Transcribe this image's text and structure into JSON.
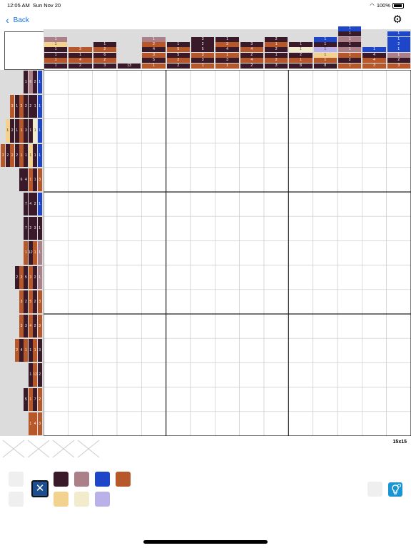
{
  "status": {
    "time": "12:05 AM",
    "date": "Sun Nov 20",
    "battery": "100%"
  },
  "nav": {
    "back_label": "Back"
  },
  "puzzle": {
    "size_label": "15x15",
    "colors": {
      "e": "#efe8ea",
      "w": "#f2eccc",
      "s": "#f3d18f",
      "p": "#ab8089",
      "d": "#3a1a28",
      "o": "#b7582a",
      "b": "#1e46c8",
      "l": "#bab1e9"
    },
    "columns": [
      [
        [
          "p",
          "1"
        ],
        [
          "s",
          "1"
        ],
        [
          "d",
          "1"
        ],
        [
          "d",
          "1"
        ],
        [
          "o",
          "1"
        ],
        [
          "d",
          "1"
        ]
      ],
      [
        [
          "o",
          "3"
        ],
        [
          "d",
          "1"
        ],
        [
          "o",
          "4"
        ],
        [
          "d",
          "2"
        ]
      ],
      [
        [
          "d",
          "1"
        ],
        [
          "o",
          "2"
        ],
        [
          "d",
          "6"
        ],
        [
          "o",
          "2"
        ],
        [
          "d",
          "3"
        ]
      ],
      [
        [
          "d",
          "13"
        ]
      ],
      [
        [
          "p",
          "1"
        ],
        [
          "o",
          "2"
        ],
        [
          "d",
          "4"
        ],
        [
          "o",
          "3"
        ],
        [
          "d",
          "5"
        ],
        [
          "o",
          "1"
        ]
      ],
      [
        [
          "d",
          "1"
        ],
        [
          "o",
          "5"
        ],
        [
          "d",
          "5"
        ],
        [
          "o",
          "2"
        ],
        [
          "d",
          "2"
        ]
      ],
      [
        [
          "d",
          "3"
        ],
        [
          "d",
          "2"
        ],
        [
          "d",
          "5"
        ],
        [
          "o",
          "3"
        ],
        [
          "d",
          "3"
        ],
        [
          "o",
          "1"
        ]
      ],
      [
        [
          "d",
          "1"
        ],
        [
          "o",
          "3"
        ],
        [
          "d",
          "4"
        ],
        [
          "o",
          "1"
        ],
        [
          "d",
          "3"
        ],
        [
          "o",
          "1"
        ]
      ],
      [
        [
          "d",
          "3"
        ],
        [
          "o",
          "4"
        ],
        [
          "d",
          "2"
        ],
        [
          "o",
          "4"
        ],
        [
          "d",
          "2"
        ]
      ],
      [
        [
          "d",
          "2"
        ],
        [
          "o",
          "1"
        ],
        [
          "d",
          "2"
        ],
        [
          "d",
          "1"
        ],
        [
          "o",
          "2"
        ],
        [
          "d",
          "3"
        ]
      ],
      [
        [
          "d",
          "1"
        ],
        [
          "w",
          "1"
        ],
        [
          "d",
          "2"
        ],
        [
          "o",
          "1"
        ],
        [
          "d",
          "8"
        ]
      ],
      [
        [
          "b",
          "1"
        ],
        [
          "d",
          "1"
        ],
        [
          "l",
          "1"
        ],
        [
          "s",
          "1"
        ],
        [
          "o",
          "1"
        ],
        [
          "d",
          "8"
        ]
      ],
      [
        [
          "b",
          "1"
        ],
        [
          "d",
          "1"
        ],
        [
          "p",
          "1"
        ],
        [
          "d",
          "1"
        ],
        [
          "p",
          "1"
        ],
        [
          "o",
          "1"
        ],
        [
          "d",
          "2"
        ],
        [
          "o",
          "1"
        ]
      ],
      [
        [
          "b",
          "1"
        ],
        [
          "d",
          "4"
        ],
        [
          "o",
          "4"
        ],
        [
          "o",
          "3"
        ]
      ],
      [
        [
          "b",
          "1"
        ],
        [
          "b",
          "1"
        ],
        [
          "b",
          "2"
        ],
        [
          "b",
          "1"
        ],
        [
          "p",
          "1"
        ],
        [
          "d",
          "2"
        ],
        [
          "o",
          "3"
        ]
      ]
    ],
    "rows": [
      [
        [
          "d",
          "1"
        ],
        [
          "p",
          "6"
        ],
        [
          "d",
          "2"
        ],
        [
          "b",
          "1"
        ]
      ],
      [
        [
          "o",
          "3"
        ],
        [
          "d",
          "1"
        ],
        [
          "o",
          "2"
        ],
        [
          "d",
          "2"
        ],
        [
          "d",
          "2"
        ],
        [
          "d",
          "1"
        ],
        [
          "b",
          "1"
        ]
      ],
      [
        [
          "s",
          "1"
        ],
        [
          "d",
          "2"
        ],
        [
          "d",
          "1"
        ],
        [
          "o",
          "1"
        ],
        [
          "d",
          "3"
        ],
        [
          "d",
          "1"
        ],
        [
          "w",
          "1"
        ],
        [
          "b",
          "1"
        ]
      ],
      [
        [
          "o",
          "2"
        ],
        [
          "d",
          "2"
        ],
        [
          "o",
          "2"
        ],
        [
          "d",
          "2"
        ],
        [
          "o",
          "1"
        ],
        [
          "d",
          "1"
        ],
        [
          "s",
          "1"
        ],
        [
          "d",
          "1"
        ],
        [
          "b",
          "1"
        ]
      ],
      [
        [
          "d",
          "6"
        ],
        [
          "d",
          "4"
        ],
        [
          "o",
          "1"
        ],
        [
          "d",
          "1"
        ],
        [
          "o",
          "3"
        ]
      ],
      [
        [
          "d",
          "7"
        ],
        [
          "d",
          "4"
        ],
        [
          "d",
          "2"
        ],
        [
          "b",
          "1"
        ]
      ],
      [
        [
          "d",
          "7"
        ],
        [
          "d",
          "2"
        ],
        [
          "d",
          "3"
        ],
        [
          "d",
          "1"
        ]
      ],
      [
        [
          "o",
          "1"
        ],
        [
          "d",
          "12"
        ],
        [
          "o",
          "1"
        ],
        [
          "p",
          "1"
        ]
      ],
      [
        [
          "d",
          "2"
        ],
        [
          "o",
          "2"
        ],
        [
          "d",
          "5"
        ],
        [
          "o",
          "3"
        ],
        [
          "d",
          "2"
        ],
        [
          "p",
          "1"
        ]
      ],
      [
        [
          "o",
          "3"
        ],
        [
          "d",
          "2"
        ],
        [
          "o",
          "5"
        ],
        [
          "d",
          "2"
        ],
        [
          "o",
          "3"
        ]
      ],
      [
        [
          "o",
          "3"
        ],
        [
          "d",
          "3"
        ],
        [
          "o",
          "4"
        ],
        [
          "d",
          "2"
        ],
        [
          "o",
          "3"
        ]
      ],
      [
        [
          "o",
          "2"
        ],
        [
          "d",
          "4"
        ],
        [
          "o",
          "1"
        ],
        [
          "d",
          "1"
        ],
        [
          "o",
          "1"
        ],
        [
          "d",
          "3"
        ]
      ],
      [
        [
          "d",
          "1"
        ],
        [
          "o",
          "12"
        ],
        [
          "d",
          "2"
        ]
      ],
      [
        [
          "d",
          "5"
        ],
        [
          "o",
          "1"
        ],
        [
          "d",
          "7"
        ],
        [
          "o",
          "2"
        ]
      ],
      [
        [
          "o",
          "1"
        ],
        [
          "o",
          "4"
        ],
        [
          "o",
          "3"
        ]
      ]
    ],
    "palette": {
      "top": [
        {
          "name": "empty",
          "color": "#efefef"
        },
        {
          "name": "d",
          "color": "#3a1a28"
        },
        {
          "name": "p",
          "color": "#ab8089"
        },
        {
          "name": "b",
          "color": "#1e46c8"
        },
        {
          "name": "o",
          "color": "#b7582a"
        }
      ],
      "bottom": [
        {
          "name": "empty",
          "color": "#efefef"
        },
        {
          "name": "s",
          "color": "#f3d18f"
        },
        {
          "name": "w",
          "color": "#f2eccc"
        },
        {
          "name": "l",
          "color": "#bab1e9"
        }
      ],
      "eraser_symbol": "✕"
    }
  }
}
